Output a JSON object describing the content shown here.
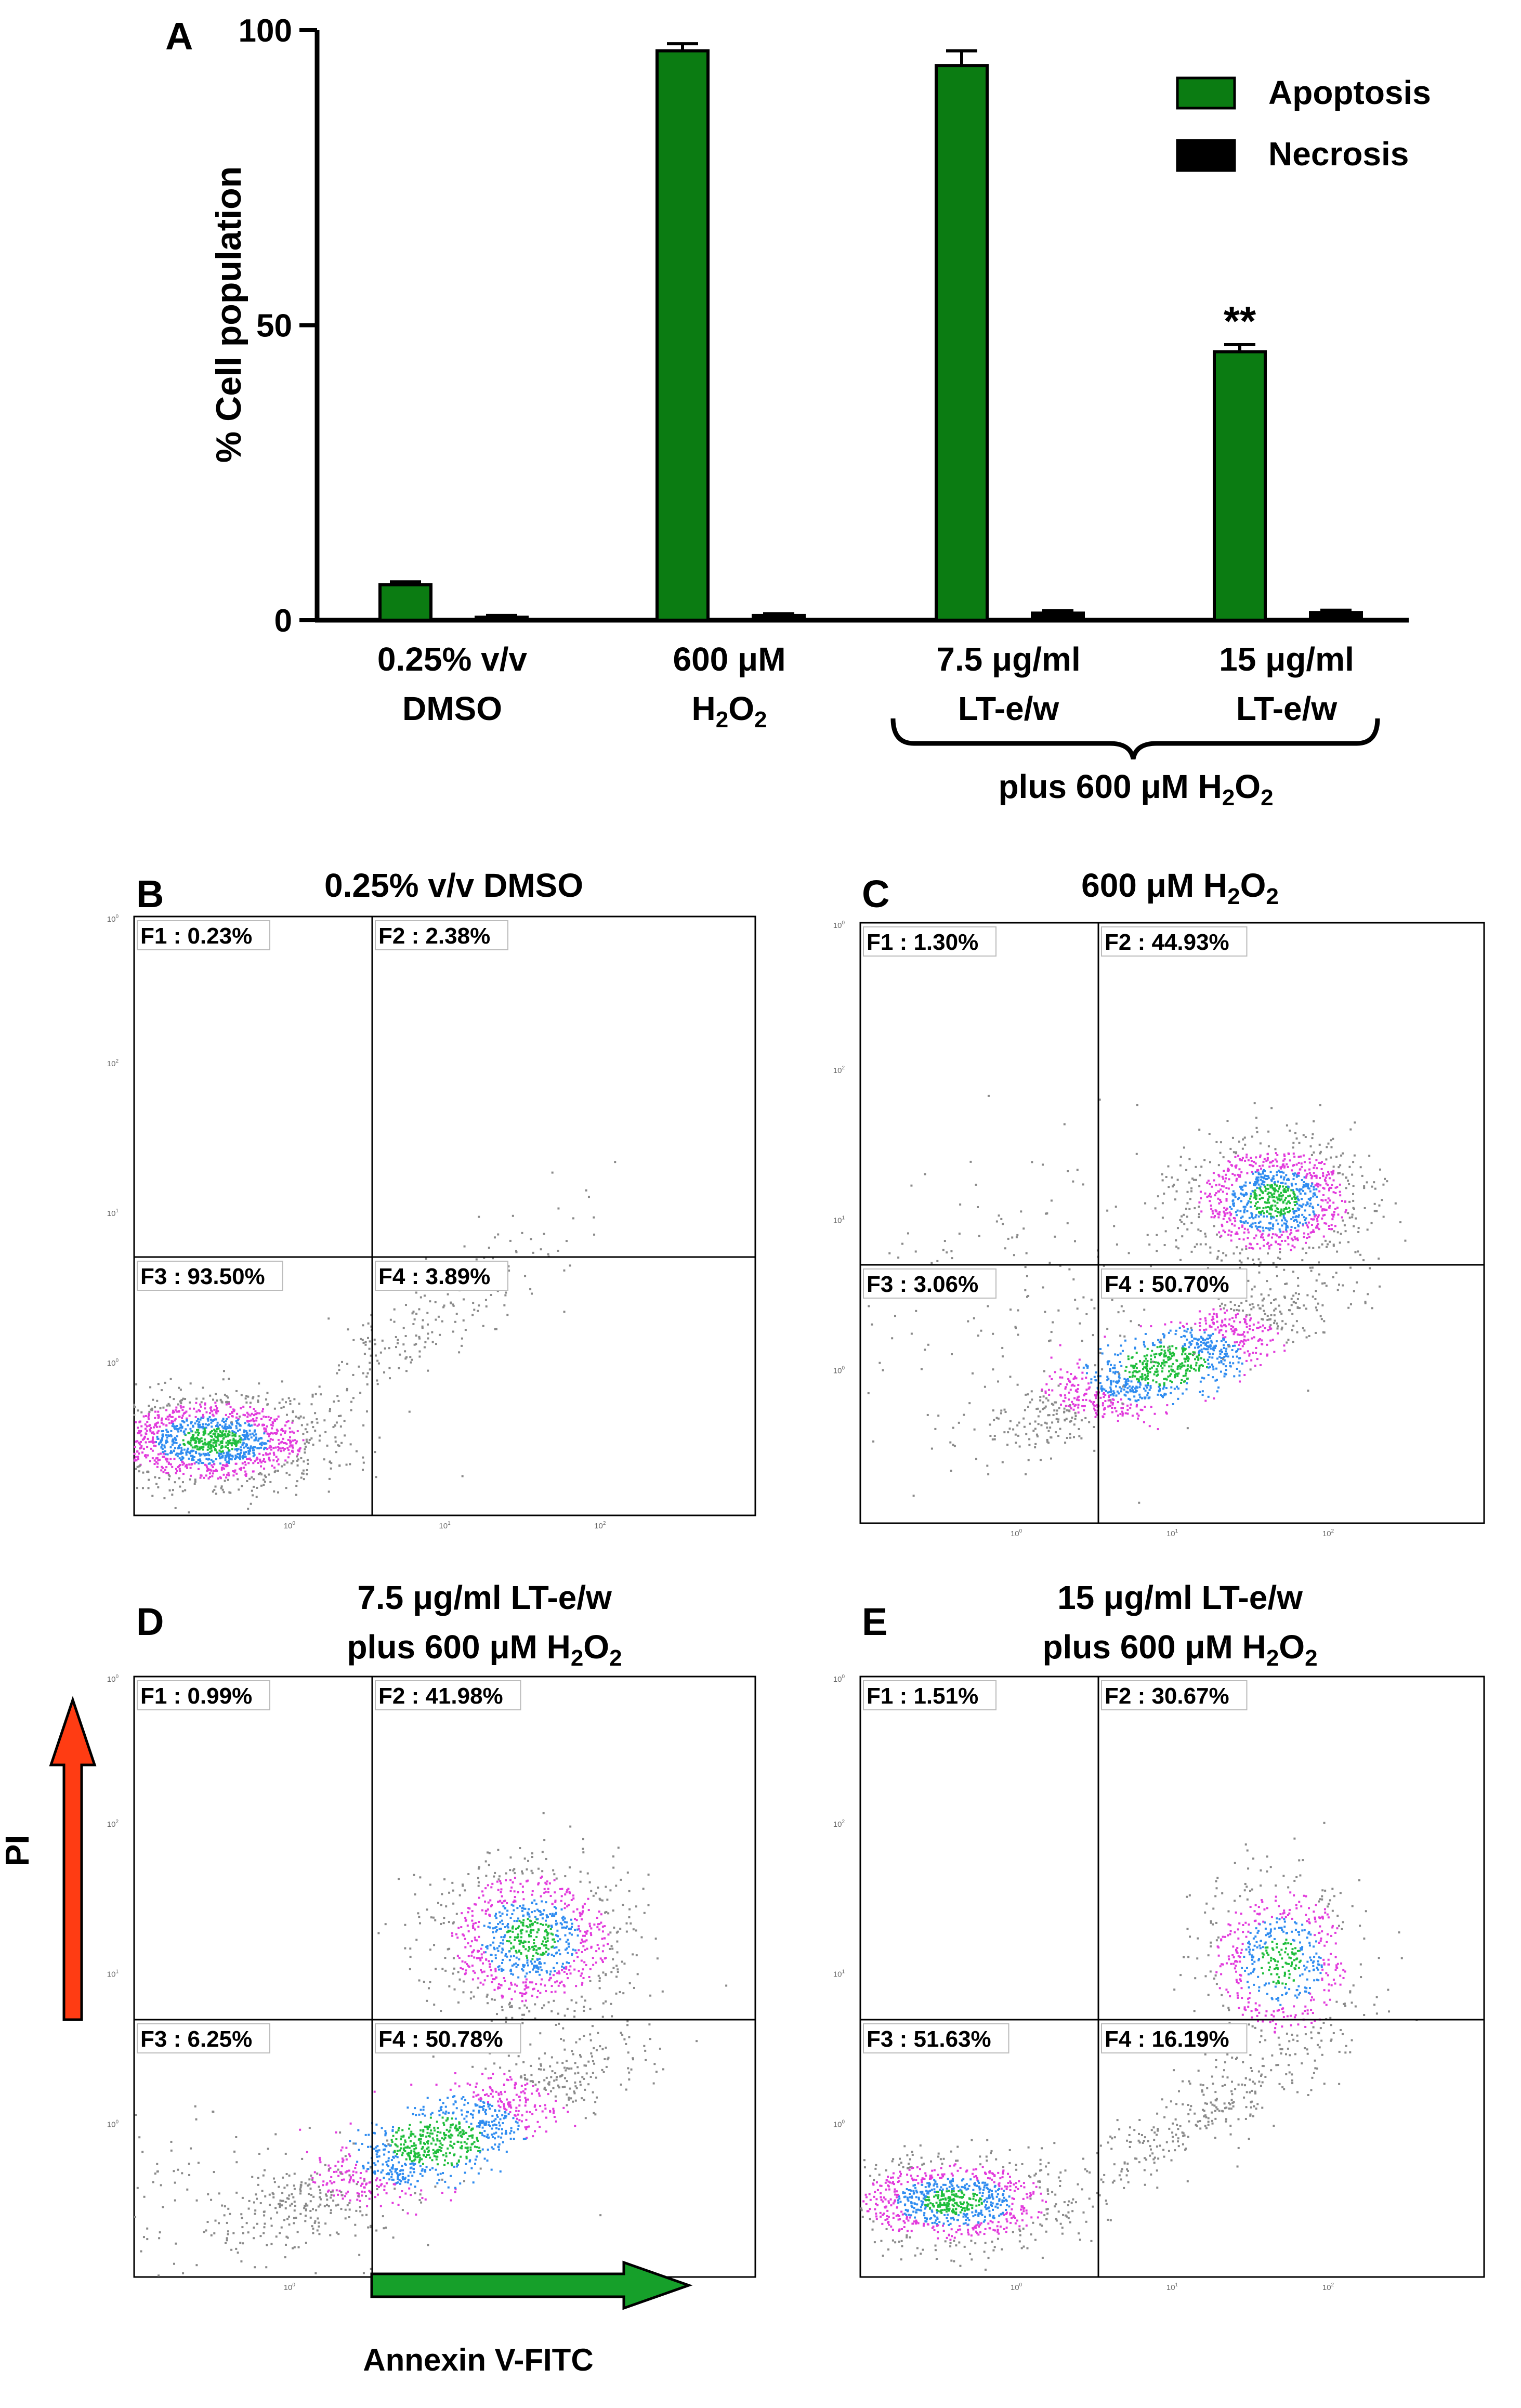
{
  "chart_data": [
    {
      "type": "bar",
      "panel_letter": "A",
      "categories": [
        {
          "lines": [
            "0.25% v/v",
            "DMSO"
          ]
        },
        {
          "lines": [
            "600 μM",
            "H2O2"
          ],
          "sub_line": {
            "base": "H",
            "s1": "2",
            "mid": "O",
            "s2": "2"
          }
        },
        {
          "lines": [
            "7.5 μg/ml",
            "LT-e/w"
          ]
        },
        {
          "lines": [
            "15 μg/ml",
            "LT-e/w"
          ]
        }
      ],
      "group_label": "plus 600 μM H2O2",
      "group_label_parts": {
        "pre": "plus 600 μM H",
        "s1": "2",
        "mid": "O",
        "s2": "2"
      },
      "series": [
        {
          "name": "Apoptosis",
          "color": "#0b7c12",
          "values": [
            6.0,
            96.5,
            94.0,
            45.5
          ],
          "errors": [
            0.5,
            1.2,
            2.5,
            1.2
          ]
        },
        {
          "name": "Necrosis",
          "color": "#000000",
          "values": [
            0.5,
            0.8,
            1.2,
            1.3
          ],
          "errors": [
            0.3,
            0.3,
            0.4,
            0.4
          ]
        }
      ],
      "ylabel": "% Cell population",
      "ylim": [
        0,
        100
      ],
      "yticks": [
        "0",
        "50",
        "100"
      ],
      "annotation": {
        "text": "**",
        "category_index": 3
      },
      "legend": "top-right",
      "grid": false
    },
    {
      "type": "scatter",
      "panel_letter": "B",
      "title": "0.25% v/v DMSO",
      "quadrants": {
        "F1": "0.23%",
        "F2": "2.38%",
        "F3": "93.50%",
        "F4": "3.89%"
      },
      "populations": [
        {
          "center": [
            -0.5,
            -0.5
          ],
          "spread": [
            0.35,
            0.15
          ],
          "count": 1500,
          "dense": true
        },
        {
          "center": [
            0.9,
            0.3
          ],
          "spread": [
            0.45,
            0.35
          ],
          "count": 220,
          "dense": false,
          "diag": true
        }
      ],
      "xlim": [
        -1,
        3
      ],
      "ylim": [
        -1,
        3
      ]
    },
    {
      "type": "scatter",
      "panel_letter": "C",
      "title": "600 μM H2O2",
      "title_parts": {
        "pre": "600 μM H",
        "s1": "2",
        "mid": "O",
        "s2": "2"
      },
      "quadrants": {
        "F1": "1.30%",
        "F2": "44.93%",
        "F3": "3.06%",
        "F4": "50.70%"
      },
      "populations": [
        {
          "center": [
            1.65,
            1.15
          ],
          "spread": [
            0.28,
            0.2
          ],
          "count": 1100,
          "dense": true
        },
        {
          "center": [
            0.95,
            0.05
          ],
          "spread": [
            0.5,
            0.25
          ],
          "count": 1200,
          "dense": true,
          "diag": true
        },
        {
          "center": [
            0.2,
            0.5
          ],
          "spread": [
            0.6,
            0.5
          ],
          "count": 200,
          "dense": false
        }
      ],
      "xlim": [
        -1,
        3
      ],
      "ylim": [
        -1,
        3
      ]
    },
    {
      "type": "scatter",
      "panel_letter": "D",
      "title": "7.5 μg/ml LT-e/w",
      "subtitle": "plus 600 μM H2O2",
      "subtitle_parts": {
        "pre": "plus 600 μM H",
        "s1": "2",
        "mid": "O",
        "s2": "2"
      },
      "quadrants": {
        "F1": "0.99%",
        "F2": "41.98%",
        "F3": "6.25%",
        "F4": "50.78%"
      },
      "populations": [
        {
          "center": [
            1.55,
            1.25
          ],
          "spread": [
            0.3,
            0.25
          ],
          "count": 1000,
          "dense": true
        },
        {
          "center": [
            0.95,
            -0.1
          ],
          "spread": [
            0.55,
            0.3
          ],
          "count": 1200,
          "dense": true,
          "diag": true
        },
        {
          "center": [
            -0.3,
            -0.5
          ],
          "spread": [
            0.6,
            0.25
          ],
          "count": 200,
          "dense": false
        }
      ],
      "xlim": [
        -1,
        3
      ],
      "ylim": [
        -1,
        3
      ]
    },
    {
      "type": "scatter",
      "panel_letter": "E",
      "title": "15 μg/ml LT-e/w",
      "subtitle": "plus 600 μM H2O2",
      "subtitle_parts": {
        "pre": "plus 600 μM H",
        "s1": "2",
        "mid": "O",
        "s2": "2"
      },
      "quadrants": {
        "F1": "1.51%",
        "F2": "30.67%",
        "F3": "51.63%",
        "F4": "16.19%"
      },
      "populations": [
        {
          "center": [
            -0.4,
            -0.5
          ],
          "spread": [
            0.35,
            0.15
          ],
          "count": 1000,
          "dense": true
        },
        {
          "center": [
            1.7,
            1.1
          ],
          "spread": [
            0.25,
            0.28
          ],
          "count": 650,
          "dense": true
        },
        {
          "center": [
            1.2,
            0.1
          ],
          "spread": [
            0.45,
            0.3
          ],
          "count": 300,
          "dense": false,
          "diag": true
        }
      ],
      "xlim": [
        -1,
        3
      ],
      "ylim": [
        -1,
        3
      ]
    }
  ],
  "axis_labels": {
    "y": "PI",
    "x": "Annexin V-FITC"
  },
  "tick_text": {
    "t0": "10",
    "e0": "0",
    "e1": "1",
    "e2": "2"
  },
  "colors": {
    "bar_green": "#0b7c12",
    "arrow_red": "#ff3c13",
    "arrow_green": "#16a02a",
    "dot_gray": "#8a8a8a",
    "dot_magenta": "#e23bdc",
    "dot_blue": "#2f8cf0",
    "dot_green": "#1fbe3c"
  }
}
